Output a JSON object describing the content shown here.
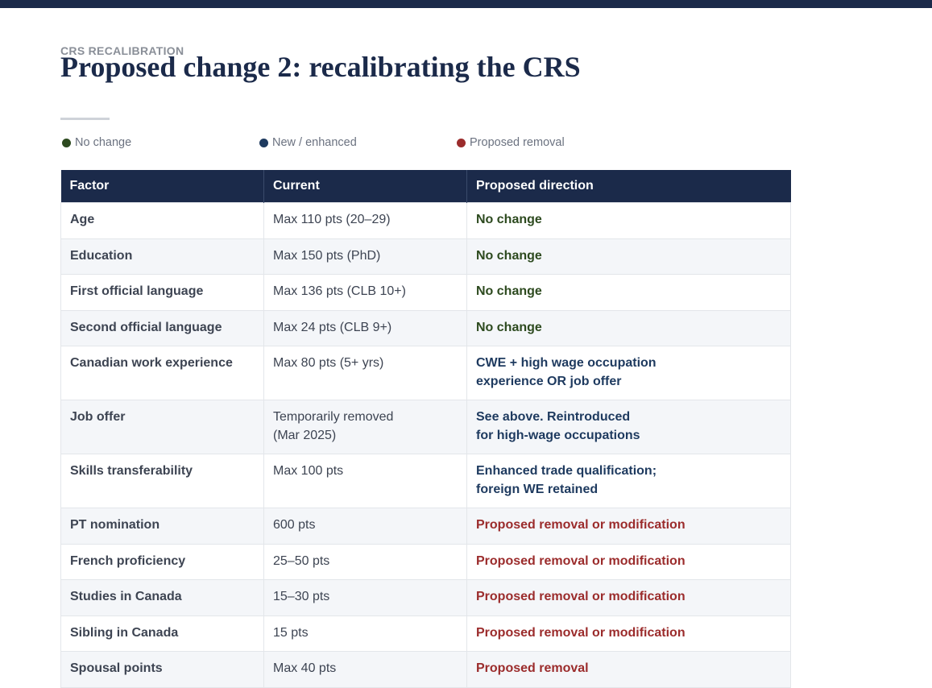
{
  "header": {
    "eyebrow": "CRS RECALIBRATION",
    "title": "Proposed change 2: recalibrating the CRS"
  },
  "legend": {
    "items": [
      {
        "label": "No change",
        "color": "#2d4a1f"
      },
      {
        "label": "New / enhanced",
        "color": "#1e3a5f"
      },
      {
        "label": "Proposed removal",
        "color": "#9b2c2c"
      }
    ]
  },
  "table": {
    "headers": {
      "factor": "Factor",
      "current": "Current",
      "proposed": "Proposed direction"
    },
    "rows": [
      {
        "factor": "Age",
        "current": "Max 110 pts (20–29)",
        "proposed": "No change",
        "status": "nochange"
      },
      {
        "factor": "Education",
        "current": "Max 150 pts (PhD)",
        "proposed": "No change",
        "status": "nochange"
      },
      {
        "factor": "First official language",
        "current": "Max 136 pts (CLB 10+)",
        "proposed": "No change",
        "status": "nochange"
      },
      {
        "factor": "Second official language",
        "current": "Max 24 pts (CLB 9+)",
        "proposed": "No change",
        "status": "nochange"
      },
      {
        "factor": "Canadian work experience",
        "current": "Max 80 pts (5+ yrs)",
        "proposed": "CWE + high wage occupation\nexperience OR job offer",
        "status": "enhanced"
      },
      {
        "factor": "Job offer",
        "current": "Temporarily removed\n(Mar 2025)",
        "proposed": "See above. Reintroduced\nfor high-wage occupations",
        "status": "enhanced"
      },
      {
        "factor": "Skills transferability",
        "current": "Max 100 pts",
        "proposed": "Enhanced trade qualification;\nforeign WE retained",
        "status": "enhanced"
      },
      {
        "factor": "PT nomination",
        "current": "600 pts",
        "proposed": "Proposed removal or modification",
        "status": "removal"
      },
      {
        "factor": "French proficiency",
        "current": "25–50 pts",
        "proposed": "Proposed removal or modification",
        "status": "removal"
      },
      {
        "factor": "Studies in Canada",
        "current": "15–30 pts",
        "proposed": "Proposed removal or modification",
        "status": "removal"
      },
      {
        "factor": "Sibling in Canada",
        "current": "15 pts",
        "proposed": "Proposed removal or modification",
        "status": "removal"
      },
      {
        "factor": "Spousal points",
        "current": "Max 40 pts",
        "proposed": "Proposed removal",
        "status": "removal"
      }
    ]
  }
}
